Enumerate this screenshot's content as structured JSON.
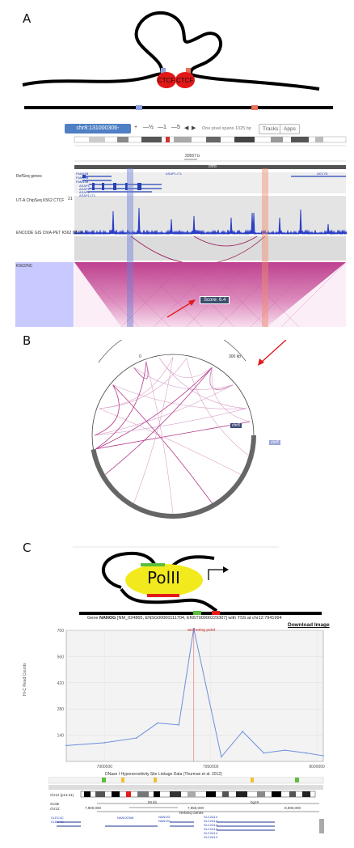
{
  "panels": {
    "a": "A",
    "b": "B",
    "c": "C"
  },
  "panel_a": {
    "ctcf_label": "CTCF",
    "locus": "chr8:131000306-131997339",
    "nav_buttons": [
      "+",
      "—½",
      "—1",
      "—5",
      "◀",
      "▶"
    ],
    "pixel_span": "One pixel spans 1025 bp",
    "tracks_button": "Tracks",
    "apps_button": "Apps",
    "chromosome": "chr8",
    "span_label": "20557 b",
    "track_labels": [
      "RefSeq genes",
      "UT-A ChipSeq K562 CTCF",
      "ENCODE GIS ChIA-PET K562 CTCF",
      "K562/NC"
    ],
    "track_scale": "21",
    "genes_left": [
      "FAM49B",
      "FAM49B",
      "FAM49B",
      "ASAP1",
      "ASAP1",
      "ASAP1",
      "ASAP1-IT1"
    ],
    "genes_mid": "ASAP1-IT1",
    "genes_right": "ADCY8",
    "score_tooltip": "Score: 6.4"
  },
  "panel_b": {
    "arc_start": "0",
    "arc_end": "300 kb",
    "chr_label": "chr8",
    "outside_label": "chr8"
  },
  "panel_c": {
    "polii_label": "PolII",
    "gene_title_pre": "Gene ",
    "gene_name": "NANOG",
    "gene_title_post": " [NM_024865, ENSG00000111704, ENST00000229307] with TSS at chr12:7941994",
    "download_label": "Download Image",
    "anchor_label": "anchoring point",
    "y_axis_label": "Hi-C Read Counts",
    "y_ticks": [
      "700",
      "560",
      "420",
      "280",
      "140"
    ],
    "x_ticks": [
      "7900000",
      "7950000",
      "8000000"
    ],
    "dnase_label": "DNase I Hypersensitivity Site Linkage Data (Thurman et al. 2012)",
    "ideogram_label": "chr12 (p13.31)",
    "browser_scale_label": "Scale",
    "browser_chr_label": "chr12:",
    "browser_ruler": "50 kb",
    "browser_assembly": "hg19",
    "browser_pos": [
      "7,900,000",
      "7,950,000",
      "8,000,000"
    ],
    "refseq_label": "RefSeq Genes",
    "browser_genes": [
      "CLEC4C",
      "CLEC4C",
      "NANOGNB",
      "NANOG",
      "NANOG",
      "SLC2A14",
      "SLC2A14",
      "SLC2A14",
      "SLC2A14",
      "SLC2A14",
      "SLC2A14"
    ]
  },
  "chart_data": {
    "type": "line",
    "x": [
      7880000,
      7900000,
      7915000,
      7925000,
      7935000,
      7942000,
      7955000,
      7965000,
      7975000,
      7985000,
      7995000,
      8005000
    ],
    "y": [
      85,
      100,
      125,
      205,
      195,
      710,
      24,
      160,
      45,
      60,
      45,
      30
    ],
    "xlim": [
      7882000,
      8003000
    ],
    "ylim": [
      0,
      700
    ],
    "y_ticks": [
      140,
      280,
      420,
      560,
      700
    ],
    "x_ticks": [
      7900000,
      7950000,
      8000000
    ],
    "anchor_x": 7942000,
    "ylabel": "Hi-C Read Counts",
    "grid": true,
    "color": "#6a8fd8"
  }
}
